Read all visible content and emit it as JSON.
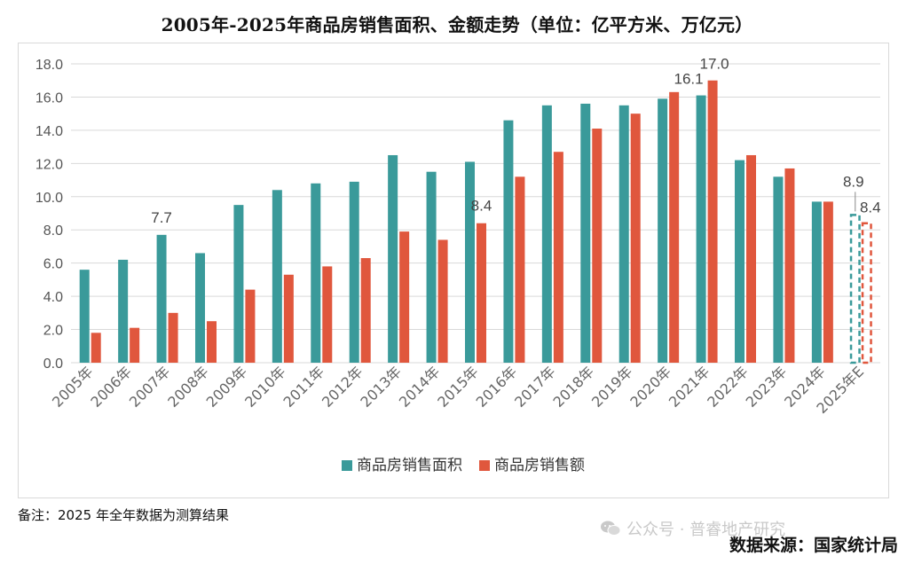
{
  "title": "2005年-2025年商品房销售面积、金额走势（单位：亿平方米、万亿元）",
  "note": "备注：2025 年全年数据为测算结果",
  "watermark": "公众号 · 普睿地产研究",
  "source": "数据来源：国家统计局",
  "chart_data": {
    "type": "bar",
    "title": "2005年-2025年商品房销售面积、金额走势（单位：亿平方米、万亿元）",
    "categories": [
      "2005年",
      "2006年",
      "2007年",
      "2008年",
      "2009年",
      "2010年",
      "2011年",
      "2012年",
      "2013年",
      "2014年",
      "2015年",
      "2016年",
      "2017年",
      "2018年",
      "2019年",
      "2020年",
      "2021年",
      "2022年",
      "2023年",
      "2024年",
      "2025年E"
    ],
    "series": [
      {
        "name": "商品房销售面积",
        "color": "#3a9a9a",
        "values": [
          5.6,
          6.2,
          7.7,
          6.6,
          9.5,
          10.4,
          10.8,
          10.9,
          12.5,
          11.5,
          12.1,
          14.6,
          15.5,
          15.6,
          15.5,
          15.9,
          16.1,
          12.2,
          11.2,
          9.7,
          8.9
        ]
      },
      {
        "name": "商品房销售额",
        "color": "#e0573d",
        "values": [
          1.8,
          2.1,
          3.0,
          2.5,
          4.4,
          5.3,
          5.8,
          6.3,
          7.9,
          7.4,
          8.4,
          11.2,
          12.7,
          14.1,
          15.0,
          16.3,
          17.0,
          12.5,
          11.7,
          9.7,
          8.4
        ]
      }
    ],
    "estimate_category": "2025年E",
    "data_labels": [
      {
        "category": "2007年",
        "series": 0,
        "text": "7.7"
      },
      {
        "category": "2015年",
        "series": 1,
        "text": "8.4"
      },
      {
        "category": "2021年",
        "series": 0,
        "text": "16.1"
      },
      {
        "category": "2021年",
        "series": 1,
        "text": "17.0"
      },
      {
        "category": "2025年E",
        "series": 0,
        "text": "8.9"
      },
      {
        "category": "2025年E",
        "series": 1,
        "text": "8.4"
      }
    ],
    "ylim": [
      0,
      18
    ],
    "yticks": [
      "0.0",
      "2.0",
      "4.0",
      "6.0",
      "8.0",
      "10.0",
      "12.0",
      "14.0",
      "16.0",
      "18.0"
    ],
    "grid": true,
    "legend": "bottom-center"
  }
}
